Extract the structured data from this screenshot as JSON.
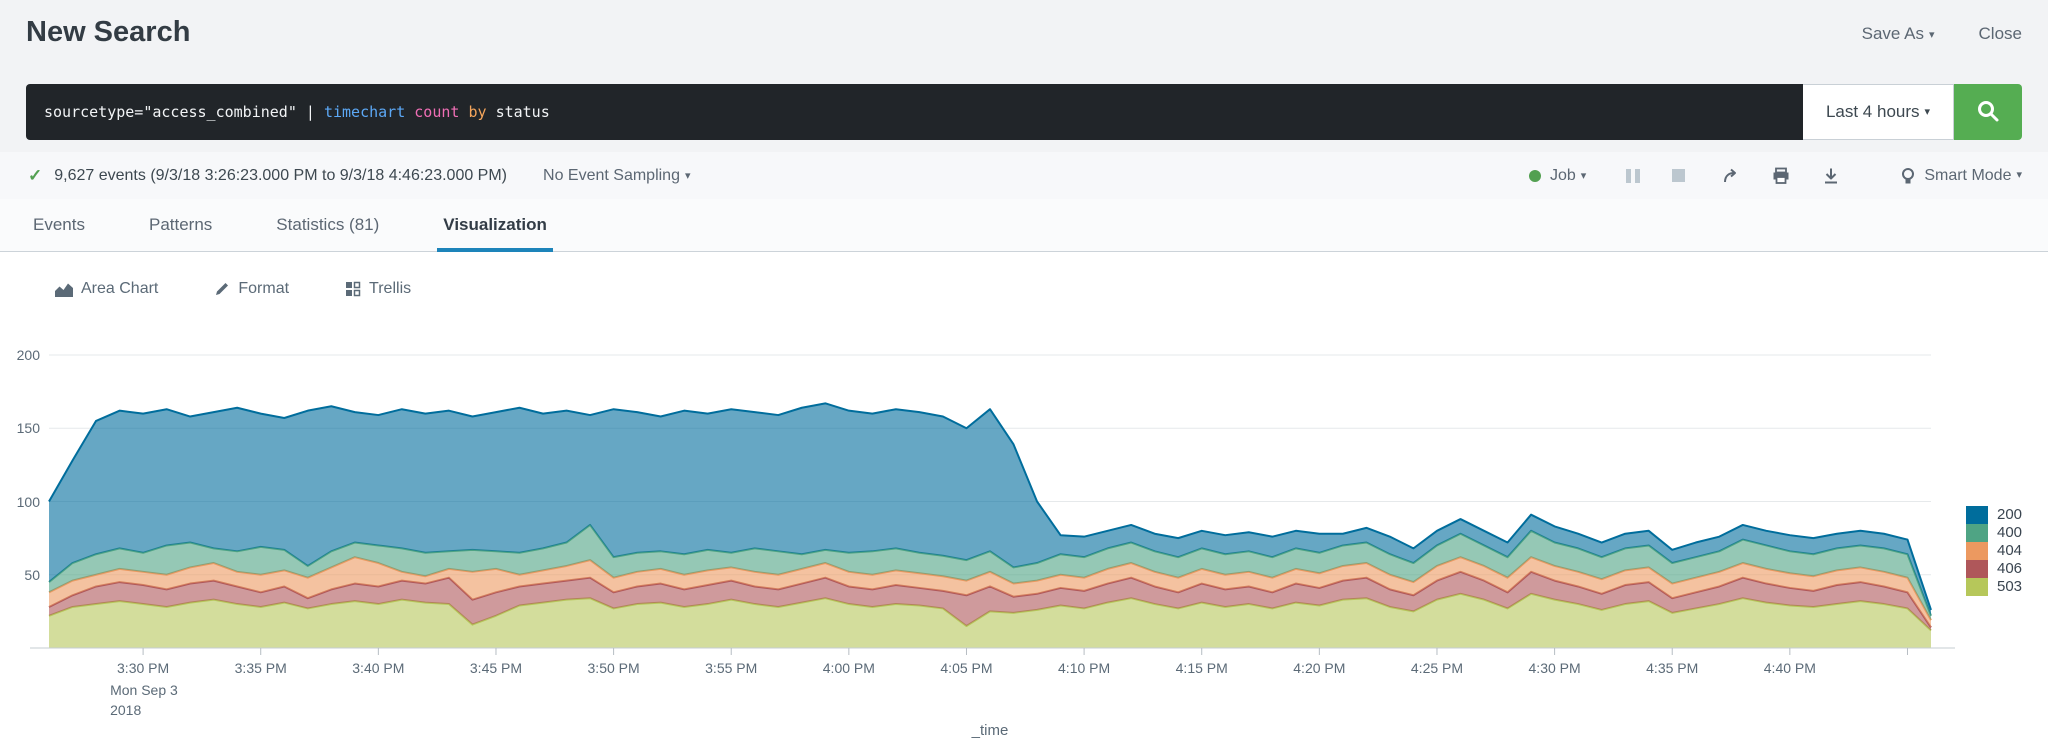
{
  "header": {
    "title": "New Search",
    "save_as_label": "Save As",
    "close_label": "Close"
  },
  "search": {
    "query": {
      "pre": "sourcetype=\"access_combined\" | ",
      "cmd": "timechart ",
      "fn": "count ",
      "kw": "by ",
      "arg": "status"
    },
    "time_range_label": "Last 4 hours",
    "search_icon": "magnifier-icon"
  },
  "status_bar": {
    "events_summary": "9,627 events (9/3/18 3:26:23.000 PM to 9/3/18 4:46:23.000 PM)",
    "sampling_label": "No Event Sampling",
    "job_label": "Job",
    "smart_mode_label": "Smart Mode"
  },
  "tabs": {
    "items": [
      {
        "label": "Events",
        "active": false
      },
      {
        "label": "Patterns",
        "active": false
      },
      {
        "label": "Statistics (81)",
        "active": false
      },
      {
        "label": "Visualization",
        "active": true
      }
    ]
  },
  "viz_controls": {
    "chart_type_label": "Area Chart",
    "format_label": "Format",
    "trellis_label": "Trellis"
  },
  "colors": {
    "accent_green": "#55ad52",
    "job_status_green": "#53a051",
    "active_tab_underline": "#1d84ba",
    "syntax_command": "#5ca8f5",
    "syntax_function": "#ef6eb5",
    "syntax_keyword": "#f5a55b",
    "search_bar_bg": "#212529"
  },
  "chart_data": {
    "type": "area",
    "stacked": true,
    "title": "",
    "xlabel": "_time",
    "ylabel": "",
    "ylim": [
      0,
      200
    ],
    "y_ticks": [
      50,
      100,
      150,
      200
    ],
    "grid": "horizontal",
    "legend_position": "right",
    "x_start": "9/3/18 3:26 PM",
    "x_bin_minutes": 1,
    "x_tick_labels": [
      "3:30 PM",
      "3:35 PM",
      "3:40 PM",
      "3:45 PM",
      "3:50 PM",
      "3:55 PM",
      "4:00 PM",
      "4:05 PM",
      "4:10 PM",
      "4:15 PM",
      "4:20 PM",
      "4:25 PM",
      "4:30 PM",
      "4:35 PM",
      "4:40 PM"
    ],
    "x_first_tick_sublabels": [
      "Mon Sep 3",
      "2018"
    ],
    "stack_order_bottom_to_top": [
      "503",
      "406",
      "404",
      "400",
      "200"
    ],
    "fill_opacity": 0.6,
    "series": [
      {
        "name": "200",
        "color": "#006d9c",
        "values": [
          55,
          70,
          91,
          94,
          95,
          93,
          86,
          93,
          98,
          91,
          90,
          106,
          99,
          89,
          89,
          95,
          95,
          96,
          91,
          95,
          99,
          92,
          90,
          75,
          101,
          96,
          92,
          98,
          93,
          98,
          93,
          93,
          100,
          100,
          97,
          94,
          95,
          96,
          95,
          90,
          97,
          84,
          42,
          13,
          14,
          12,
          12,
          12,
          13,
          12,
          13,
          13,
          14,
          12,
          13,
          8,
          10,
          12,
          10,
          10,
          10,
          10,
          10,
          11,
          11,
          10,
          10,
          10,
          10,
          9,
          10,
          10,
          10,
          10,
          11,
          11,
          10,
          10,
          10,
          10,
          4
        ]
      },
      {
        "name": "400",
        "color": "#4fa484",
        "values": [
          7,
          12,
          14,
          14,
          13,
          20,
          17,
          10,
          14,
          19,
          14,
          8,
          11,
          10,
          12,
          16,
          16,
          12,
          15,
          12,
          15,
          15,
          16,
          24,
          14,
          13,
          12,
          14,
          14,
          10,
          16,
          16,
          10,
          9,
          13,
          16,
          15,
          14,
          14,
          14,
          14,
          11,
          12,
          14,
          14,
          14,
          14,
          14,
          14,
          14,
          14,
          14,
          14,
          14,
          14,
          14,
          14,
          14,
          13,
          14,
          16,
          14,
          14,
          18,
          16,
          16,
          15,
          15,
          15,
          14,
          14,
          14,
          16,
          16,
          15,
          15,
          15,
          15,
          16,
          16,
          3
        ]
      },
      {
        "name": "404",
        "color": "#ec9960",
        "values": [
          10,
          10,
          8,
          9,
          9,
          10,
          11,
          12,
          10,
          12,
          11,
          14,
          15,
          18,
          16,
          6,
          5,
          6,
          19,
          16,
          8,
          9,
          10,
          12,
          10,
          10,
          10,
          10,
          10,
          9,
          10,
          10,
          10,
          10,
          10,
          10,
          10,
          10,
          10,
          10,
          10,
          9,
          9,
          9,
          9,
          10,
          10,
          10,
          10,
          10,
          10,
          10,
          10,
          10,
          10,
          10,
          10,
          10,
          9,
          10,
          10,
          10,
          10,
          10,
          10,
          10,
          10,
          10,
          10,
          10,
          10,
          10,
          10,
          10,
          10,
          10,
          10,
          10,
          10,
          10,
          5
        ]
      },
      {
        "name": "406",
        "color": "#af575a",
        "values": [
          6,
          8,
          12,
          13,
          13,
          12,
          13,
          13,
          12,
          10,
          11,
          7,
          10,
          12,
          12,
          13,
          13,
          18,
          17,
          16,
          13,
          13,
          13,
          14,
          11,
          12,
          13,
          12,
          13,
          13,
          12,
          12,
          13,
          14,
          12,
          12,
          13,
          12,
          12,
          21,
          17,
          11,
          11,
          12,
          12,
          13,
          14,
          12,
          11,
          13,
          12,
          12,
          11,
          13,
          12,
          13,
          14,
          12,
          11,
          13,
          15,
          13,
          11,
          15,
          13,
          12,
          11,
          13,
          13,
          10,
          11,
          12,
          14,
          13,
          12,
          11,
          13,
          13,
          12,
          11,
          2
        ]
      },
      {
        "name": "503",
        "color": "#b6c75a",
        "values": [
          22,
          28,
          30,
          32,
          30,
          28,
          31,
          33,
          30,
          28,
          31,
          27,
          30,
          32,
          30,
          33,
          31,
          30,
          16,
          22,
          29,
          31,
          33,
          34,
          27,
          30,
          31,
          28,
          30,
          33,
          30,
          28,
          31,
          34,
          30,
          28,
          30,
          29,
          27,
          15,
          25,
          24,
          26,
          29,
          27,
          31,
          34,
          30,
          27,
          31,
          28,
          30,
          27,
          31,
          29,
          33,
          34,
          28,
          25,
          33,
          37,
          33,
          27,
          37,
          33,
          30,
          26,
          30,
          32,
          24,
          27,
          30,
          34,
          31,
          29,
          28,
          30,
          32,
          30,
          27,
          12
        ]
      }
    ]
  }
}
